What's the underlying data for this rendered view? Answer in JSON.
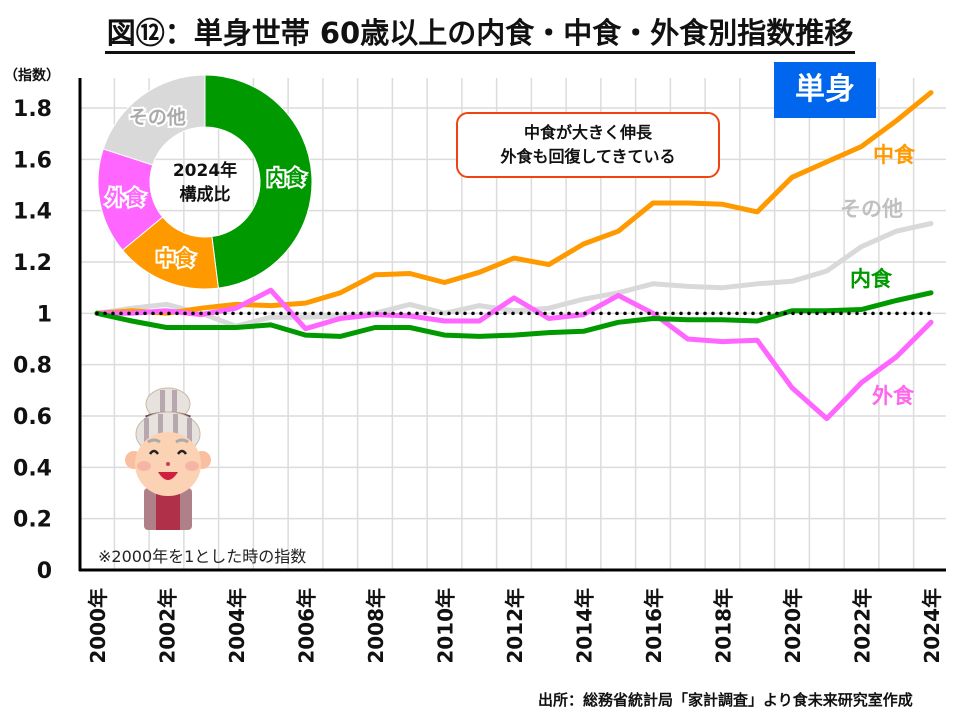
{
  "title": "図⑫：単身世帯 60歳以上の内食・中食・外食別指数推移",
  "badge": "単身",
  "callout": {
    "line1": "中食が大きく伸長",
    "line2": "外食も回復してきている"
  },
  "note": "※2000年を1とした時の指数",
  "source": "出所：総務省統計局「家計調査」より食未来研究室作成",
  "chart_data": [
    {
      "type": "line",
      "title": "単身世帯 60歳以上の内食・中食・外食別指数推移",
      "xlabel": "",
      "ylabel": "（指数）",
      "ylim": [
        0,
        1.8
      ],
      "yticks": [
        0,
        0.2,
        0.4,
        0.6,
        0.8,
        1,
        1.2,
        1.4,
        1.6,
        1.8
      ],
      "ytick_labels": [
        "0",
        "0.2",
        "0.4",
        "0.6",
        "0.8",
        "1",
        "1.2",
        "1.4",
        "1.6",
        "1.8"
      ],
      "grid": true,
      "x": [
        2000,
        2001,
        2002,
        2003,
        2004,
        2005,
        2006,
        2007,
        2008,
        2009,
        2010,
        2011,
        2012,
        2013,
        2014,
        2015,
        2016,
        2017,
        2018,
        2019,
        2020,
        2021,
        2022,
        2023,
        2024
      ],
      "xtick_labels": [
        "2000年",
        "2002年",
        "2004年",
        "2006年",
        "2008年",
        "2010年",
        "2012年",
        "2014年",
        "2016年",
        "2018年",
        "2020年",
        "2022年",
        "2024年"
      ],
      "baseline": {
        "value": 1,
        "style": "dotted",
        "color": "#000000"
      },
      "series": [
        {
          "name": "その他",
          "color": "#d9d9d9",
          "label_color": "#c0c0c0",
          "values": [
            1.0,
            1.02,
            1.035,
            1.0,
            0.95,
            0.985,
            0.985,
            0.99,
            1.0,
            1.035,
            1.0,
            1.03,
            1.01,
            1.02,
            1.055,
            1.08,
            1.115,
            1.105,
            1.1,
            1.115,
            1.125,
            1.165,
            1.26,
            1.32,
            1.35
          ]
        },
        {
          "name": "中食",
          "color": "#ff9900",
          "label_color": "#ff9900",
          "values": [
            1.0,
            1.01,
            1.0,
            1.02,
            1.035,
            1.03,
            1.04,
            1.08,
            1.15,
            1.155,
            1.12,
            1.16,
            1.215,
            1.19,
            1.27,
            1.32,
            1.43,
            1.43,
            1.425,
            1.395,
            1.53,
            1.59,
            1.65,
            1.75,
            1.86
          ]
        },
        {
          "name": "外食",
          "color": "#ff66ff",
          "label_color": "#ff66ee",
          "values": [
            1.0,
            1.0,
            1.01,
            0.995,
            1.02,
            1.09,
            0.94,
            0.98,
            0.995,
            0.99,
            0.97,
            0.97,
            1.06,
            0.98,
            0.995,
            1.07,
            1.0,
            0.9,
            0.89,
            0.895,
            0.71,
            0.59,
            0.73,
            0.83,
            0.965
          ]
        },
        {
          "name": "内食",
          "color": "#009900",
          "label_color": "#009900",
          "values": [
            1.0,
            0.97,
            0.945,
            0.945,
            0.945,
            0.955,
            0.915,
            0.91,
            0.945,
            0.945,
            0.915,
            0.91,
            0.915,
            0.925,
            0.93,
            0.965,
            0.98,
            0.975,
            0.975,
            0.97,
            1.01,
            1.01,
            1.015,
            1.05,
            1.08
          ]
        }
      ],
      "legend": "inline-right"
    },
    {
      "type": "pie",
      "title": "2024年構成比",
      "center_label_line1": "2024年",
      "center_label_line2": "構成比",
      "donut": true,
      "slices": [
        {
          "name": "内食",
          "value": 48,
          "color": "#009900"
        },
        {
          "name": "中食",
          "value": 16,
          "color": "#ff9900"
        },
        {
          "name": "外食",
          "value": 16,
          "color": "#ff66ff"
        },
        {
          "name": "その他",
          "value": 20,
          "color": "#d9d9d9"
        }
      ],
      "unit": "%"
    }
  ]
}
